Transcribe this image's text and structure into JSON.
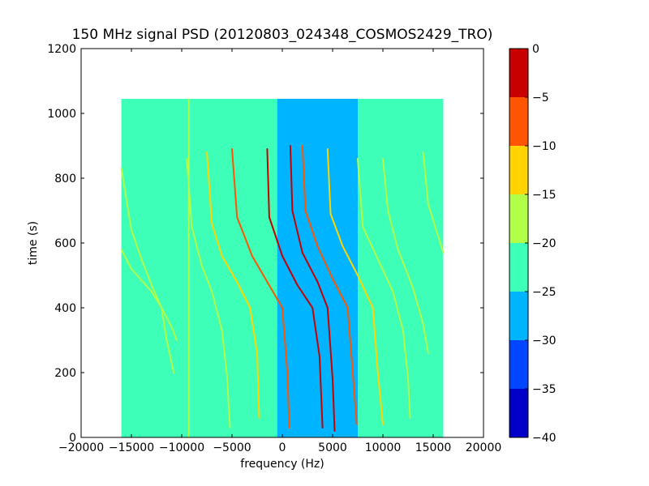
{
  "chart_data": {
    "type": "heatmap",
    "title": "150 MHz signal PSD (20120803_024348_COSMOS2429_TRO)",
    "xlabel": "frequency (Hz)",
    "ylabel": "time (s)",
    "xlim": [
      -20000,
      20000
    ],
    "ylim": [
      0,
      1200
    ],
    "xticks": [
      -20000,
      -15000,
      -10000,
      -5000,
      0,
      5000,
      10000,
      15000,
      20000
    ],
    "xtick_labels": [
      "−20000",
      "−15000",
      "−10000",
      "−5000",
      "0",
      "5000",
      "10000",
      "15000",
      "20000"
    ],
    "yticks": [
      0,
      200,
      400,
      600,
      800,
      1000,
      1200
    ],
    "ytick_labels": [
      "0",
      "200",
      "400",
      "600",
      "800",
      "1000",
      "1200"
    ],
    "data_extent": {
      "x": [
        -16000,
        16000
      ],
      "y": [
        0,
        1045
      ]
    },
    "background_level_db": -22.5,
    "center_band": {
      "x": [
        -500,
        7500
      ],
      "level_db": -27.5
    },
    "colorbar": {
      "min": -40,
      "max": 0,
      "ticks": [
        0,
        -5,
        -10,
        -15,
        -20,
        -25,
        -30,
        -35,
        -40
      ],
      "tick_labels": [
        "0",
        "−5",
        "−10",
        "−15",
        "−20",
        "−25",
        "−30",
        "−35",
        "−40"
      ],
      "bands": [
        {
          "from": -40,
          "to": -35,
          "color": "#0000c8"
        },
        {
          "from": -35,
          "to": -30,
          "color": "#0046ff"
        },
        {
          "from": -30,
          "to": -25,
          "color": "#00b4ff"
        },
        {
          "from": -25,
          "to": -20,
          "color": "#3dffb8"
        },
        {
          "from": -20,
          "to": -15,
          "color": "#b2ff4a"
        },
        {
          "from": -15,
          "to": -10,
          "color": "#ffd400"
        },
        {
          "from": -10,
          "to": -5,
          "color": "#ff5500"
        },
        {
          "from": -5,
          "to": 0,
          "color": "#c80000"
        }
      ]
    },
    "vertical_lines": [
      {
        "x": -9300,
        "level_db": -17.5,
        "y": [
          0,
          1045
        ]
      }
    ],
    "traces": [
      {
        "points": [
          [
            -16000,
            830
          ],
          [
            -15000,
            640
          ],
          [
            -14000,
            550
          ],
          [
            -13000,
            470
          ],
          [
            -12000,
            400
          ],
          [
            -11000,
            340
          ],
          [
            -10500,
            300
          ]
        ],
        "level_db": -17.5
      },
      {
        "points": [
          [
            -16000,
            580
          ],
          [
            -15000,
            520
          ],
          [
            -13000,
            450
          ],
          [
            -12000,
            400
          ],
          [
            -11500,
            300
          ],
          [
            -11000,
            230
          ],
          [
            -10800,
            200
          ]
        ],
        "level_db": -17.5
      },
      {
        "points": [
          [
            -9500,
            860
          ],
          [
            -9000,
            650
          ],
          [
            -8000,
            530
          ],
          [
            -7000,
            450
          ],
          [
            -6000,
            330
          ],
          [
            -5500,
            190
          ],
          [
            -5200,
            30
          ]
        ],
        "level_db": -17.5
      },
      {
        "points": [
          [
            -7500,
            880
          ],
          [
            -7000,
            660
          ],
          [
            -6000,
            560
          ],
          [
            -4500,
            480
          ],
          [
            -3200,
            400
          ],
          [
            -2500,
            260
          ],
          [
            -2300,
            60
          ]
        ],
        "level_db": -12.5
      },
      {
        "points": [
          [
            -5000,
            890
          ],
          [
            -4500,
            680
          ],
          [
            -3000,
            560
          ],
          [
            -1500,
            480
          ],
          [
            0,
            400
          ],
          [
            500,
            200
          ],
          [
            700,
            30
          ]
        ],
        "level_db": -7.5
      },
      {
        "points": [
          [
            -1500,
            890
          ],
          [
            -1300,
            680
          ],
          [
            0,
            560
          ],
          [
            1500,
            470
          ],
          [
            3000,
            400
          ],
          [
            3700,
            250
          ],
          [
            4000,
            30
          ]
        ],
        "level_db": -2.5
      },
      {
        "points": [
          [
            800,
            900
          ],
          [
            1000,
            700
          ],
          [
            2000,
            570
          ],
          [
            3500,
            480
          ],
          [
            4500,
            400
          ],
          [
            5000,
            180
          ],
          [
            5200,
            20
          ]
        ],
        "level_db": -2.5
      },
      {
        "points": [
          [
            2000,
            900
          ],
          [
            2300,
            700
          ],
          [
            3500,
            590
          ],
          [
            5000,
            490
          ],
          [
            6500,
            400
          ],
          [
            7000,
            200
          ],
          [
            7400,
            40
          ]
        ],
        "level_db": -7.5
      },
      {
        "points": [
          [
            4500,
            890
          ],
          [
            4800,
            690
          ],
          [
            6000,
            590
          ],
          [
            7500,
            500
          ],
          [
            9000,
            400
          ],
          [
            9500,
            200
          ],
          [
            10000,
            40
          ]
        ],
        "level_db": -12.5
      },
      {
        "points": [
          [
            7500,
            860
          ],
          [
            8000,
            650
          ],
          [
            9500,
            550
          ],
          [
            11000,
            450
          ],
          [
            12000,
            330
          ],
          [
            12500,
            180
          ],
          [
            12700,
            60
          ]
        ],
        "level_db": -17.5
      },
      {
        "points": [
          [
            10000,
            860
          ],
          [
            10500,
            700
          ],
          [
            11500,
            580
          ],
          [
            13000,
            460
          ],
          [
            14000,
            350
          ],
          [
            14500,
            260
          ]
        ],
        "level_db": -17.5
      },
      {
        "points": [
          [
            14000,
            880
          ],
          [
            14500,
            720
          ],
          [
            15500,
            620
          ],
          [
            16000,
            570
          ]
        ],
        "level_db": -17.5
      }
    ]
  }
}
